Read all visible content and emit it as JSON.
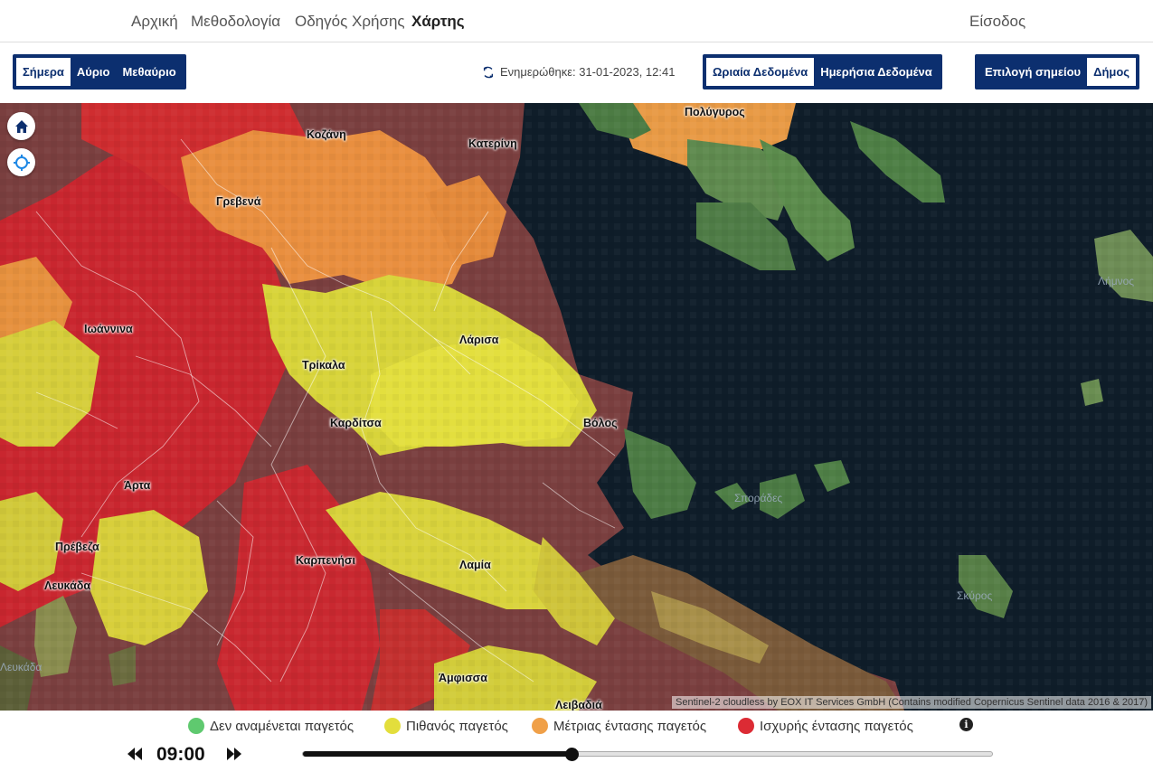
{
  "nav": {
    "links": [
      "Αρχική",
      "Μεθοδολογία",
      "Οδηγός Χρήσης",
      "Χάρτης"
    ],
    "active": "Χάρτης",
    "login": "Είσοδος"
  },
  "toolbar": {
    "days": [
      "Σήμερα",
      "Αύριο",
      "Μεθαύριο"
    ],
    "selected_day": "Σήμερα",
    "updated": "Ενημερώθηκε: 31-01-2023, 12:41",
    "data_modes": [
      "Ωριαία Δεδομένα",
      "Ημερήσια Δεδομένα"
    ],
    "selected_mode": "Ωριαία Δεδομένα",
    "location_modes": [
      "Επιλογή σημείου",
      "Δήμος"
    ],
    "selected_location_mode": "Δήμος"
  },
  "map": {
    "cities": [
      "Κοζάνη",
      "Κατερίνη",
      "Πολύγυρος",
      "Γρεβενά",
      "Ιωάννινα",
      "Λάρισα",
      "Τρίκαλα",
      "Καρδίτσα",
      "Βόλος",
      "Άρτα",
      "Πρέβεζα",
      "Λευκάδα",
      "Καρπενήσι",
      "Λαμία",
      "Άμφισσα",
      "Λειβαδιά"
    ],
    "faint_labels": [
      "Σποράδες",
      "Σκύρος",
      "Λήμνος",
      "Λευκάδα"
    ],
    "attribution": "Sentinel-2 cloudless by EOX IT Services GmbH (Contains modified Copernicus Sentinel data 2016 & 2017)",
    "controls": [
      "home-icon",
      "locate-icon"
    ]
  },
  "legend": {
    "items": [
      {
        "label": "Δεν αναμένεται παγετός",
        "color": "#5fc96f"
      },
      {
        "label": "Πιθανός παγετός",
        "color": "#e3de3c"
      },
      {
        "label": "Μέτριας έντασης παγετός",
        "color": "#f0a048"
      },
      {
        "label": "Ισχυρής έντασης παγετός",
        "color": "#dc2b34"
      }
    ],
    "info_glyph": "i"
  },
  "timebar": {
    "time": "09:00",
    "progress": 0.39
  }
}
